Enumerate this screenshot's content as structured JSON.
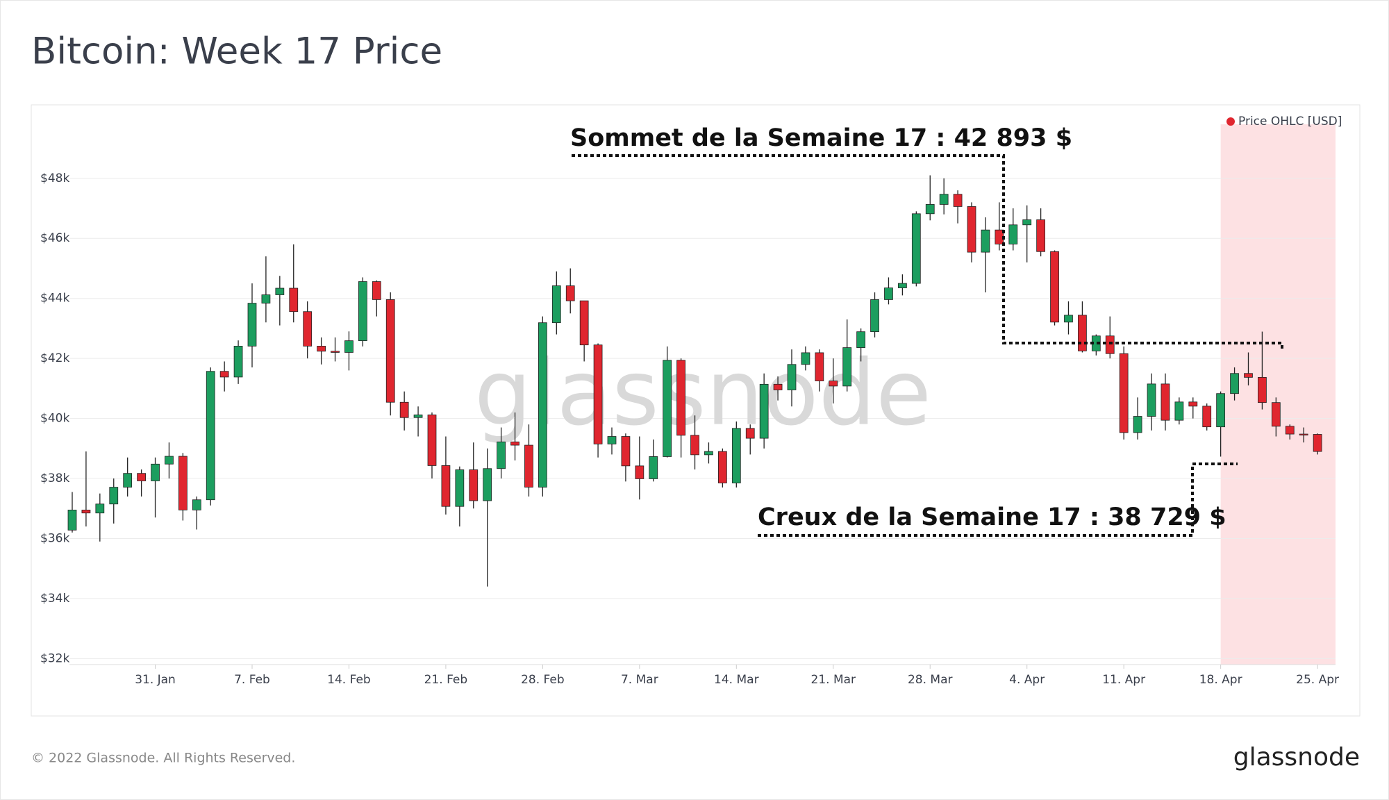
{
  "chart_data": {
    "type": "candlestick",
    "title": "Bitcoin: Week 17 Price",
    "x": [
      25,
      26,
      27,
      28,
      29,
      30,
      31,
      32,
      33,
      34,
      35,
      36,
      37,
      38,
      39,
      40,
      41,
      42,
      43,
      44,
      45,
      46,
      47,
      48,
      49,
      50,
      51,
      52,
      53,
      54,
      55,
      56,
      57,
      58,
      59,
      60,
      61,
      62,
      63,
      64,
      65,
      66,
      67,
      68,
      69,
      70,
      71,
      72,
      73,
      74,
      75,
      76,
      77,
      78,
      79,
      80,
      81,
      82,
      83,
      84,
      85,
      86,
      87,
      88,
      89,
      90,
      91,
      92,
      93,
      94,
      95,
      96,
      97,
      98,
      99,
      100,
      101,
      102,
      103,
      104,
      105,
      106,
      107,
      108,
      109,
      110,
      111,
      112,
      113,
      114,
      115
    ],
    "series": [
      {
        "name": "Price OHLC [USD]",
        "color": "#e0262f",
        "up_color": "#1c9e5f",
        "down_color": "#e0262f",
        "open": [
          36280,
          36950,
          36850,
          37150,
          37710,
          38170,
          37920,
          38480,
          38740,
          36950,
          37290,
          41570,
          41380,
          42410,
          43840,
          44120,
          44340,
          43560,
          42410,
          42240,
          42200,
          42590,
          44560,
          43960,
          40540,
          40030,
          40120,
          38430,
          37070,
          38290,
          37260,
          38330,
          39220,
          39110,
          37710,
          43190,
          44420,
          43920,
          42450,
          39150,
          39400,
          38420,
          37990,
          38730,
          41940,
          39440,
          38790,
          38900,
          37850,
          39670,
          39340,
          41140,
          40950,
          41800,
          42190,
          41250,
          41080,
          42360,
          42890,
          43960,
          44350,
          44500,
          46820,
          47130,
          47470,
          47060,
          45540,
          46280,
          45810,
          46450,
          46620,
          45560,
          43210,
          43440,
          42250,
          42750,
          42160,
          39530,
          40070,
          41150,
          39940,
          40550,
          40410,
          39720,
          40830,
          41500,
          41370,
          40530,
          39740,
          39480,
          39470
        ],
        "high": [
          37550,
          38900,
          37500,
          38000,
          38700,
          38300,
          38700,
          39200,
          38850,
          37400,
          41700,
          41900,
          42600,
          44500,
          45400,
          44750,
          45800,
          43900,
          42700,
          42700,
          42900,
          44700,
          44600,
          44200,
          40900,
          40400,
          40200,
          39400,
          38400,
          39200,
          39000,
          39700,
          40200,
          39800,
          43400,
          44900,
          45000,
          43800,
          42500,
          39700,
          39500,
          39400,
          39300,
          42400,
          42000,
          40100,
          39200,
          39000,
          39900,
          39800,
          41500,
          41400,
          42300,
          42400,
          42300,
          42000,
          43300,
          43000,
          44200,
          44700,
          44800,
          46900,
          48100,
          48000,
          47600,
          47200,
          46700,
          47200,
          47000,
          47100,
          47000,
          45600,
          43900,
          43900,
          42800,
          43400,
          42400,
          40700,
          41500,
          41500,
          40700,
          40700,
          40500,
          40900,
          41700,
          42200,
          42893,
          40700,
          39800,
          39700,
          39500
        ],
        "low": [
          36200,
          36400,
          35900,
          36500,
          37400,
          37400,
          36700,
          38000,
          36600,
          36300,
          37100,
          40900,
          41150,
          41700,
          43200,
          43100,
          43200,
          42000,
          41800,
          41900,
          41600,
          42400,
          43400,
          40100,
          39600,
          39400,
          38000,
          36800,
          36400,
          37000,
          34400,
          38000,
          38600,
          37400,
          37400,
          42800,
          43500,
          41900,
          38700,
          38800,
          37900,
          37300,
          37900,
          38700,
          38700,
          38300,
          38500,
          37700,
          37700,
          38800,
          39000,
          40600,
          40400,
          41600,
          40900,
          40500,
          40900,
          41900,
          42700,
          43800,
          44100,
          44400,
          46600,
          46800,
          46500,
          45200,
          44200,
          45600,
          45600,
          45200,
          45400,
          43100,
          42800,
          42200,
          42100,
          42000,
          39300,
          39300,
          39600,
          39600,
          39800,
          40000,
          39600,
          38729,
          40600,
          41100,
          40300,
          39400,
          39300,
          39200,
          38800
        ],
        "close": [
          36950,
          36850,
          37150,
          37710,
          38170,
          37920,
          38480,
          38740,
          36950,
          37290,
          41570,
          41380,
          42410,
          43840,
          44120,
          44340,
          43560,
          42410,
          42240,
          42200,
          42590,
          44560,
          43960,
          40540,
          40030,
          40120,
          38430,
          37070,
          38290,
          37260,
          38330,
          39220,
          39110,
          37710,
          43190,
          44420,
          43920,
          42450,
          39150,
          39400,
          38420,
          37990,
          38730,
          41940,
          39440,
          38790,
          38900,
          37850,
          39670,
          39340,
          41140,
          40950,
          41800,
          42190,
          41250,
          41080,
          42360,
          42890,
          43960,
          44350,
          44500,
          46820,
          47130,
          47470,
          47060,
          45540,
          46280,
          45810,
          46450,
          46620,
          45560,
          43210,
          43440,
          42250,
          42750,
          42160,
          39530,
          40070,
          41150,
          39940,
          40550,
          40410,
          39720,
          40830,
          41500,
          41370,
          40530,
          39740,
          39480,
          39470,
          38900
        ]
      }
    ],
    "xlim": [
      24.8,
      116.3
    ],
    "xticks": [
      {
        "value": 31,
        "label": "31. Jan"
      },
      {
        "value": 38,
        "label": "7. Feb"
      },
      {
        "value": 45,
        "label": "14. Feb"
      },
      {
        "value": 52,
        "label": "21. Feb"
      },
      {
        "value": 59,
        "label": "28. Feb"
      },
      {
        "value": 66,
        "label": "7. Mar"
      },
      {
        "value": 73,
        "label": "14. Mar"
      },
      {
        "value": 80,
        "label": "21. Mar"
      },
      {
        "value": 87,
        "label": "28. Mar"
      },
      {
        "value": 94,
        "label": "4. Apr"
      },
      {
        "value": 101,
        "label": "11. Apr"
      },
      {
        "value": 108,
        "label": "18. Apr"
      },
      {
        "value": 115,
        "label": "25. Apr"
      }
    ],
    "ylim": [
      31800,
      49800
    ],
    "yticks": [
      {
        "value": 32000,
        "label": "$32k"
      },
      {
        "value": 34000,
        "label": "$34k"
      },
      {
        "value": 36000,
        "label": "$36k"
      },
      {
        "value": 38000,
        "label": "$38k"
      },
      {
        "value": 40000,
        "label": "$40k"
      },
      {
        "value": 42000,
        "label": "$42k"
      },
      {
        "value": 44000,
        "label": "$44k"
      },
      {
        "value": 46000,
        "label": "$46k"
      },
      {
        "value": 48000,
        "label": "$48k"
      }
    ],
    "grid": true,
    "legend": "top-right",
    "shaded_range": [
      108,
      116.3
    ],
    "shaded_color": "#fde1e3",
    "annotations": [
      "Sommet de la Semaine 17 : 42 893 $",
      "Creux de la Semaine 17 : 38 729 $"
    ]
  },
  "watermark": "glassnode",
  "footer": "© 2022 Glassnode. All Rights Reserved.",
  "logo": "glassnode"
}
